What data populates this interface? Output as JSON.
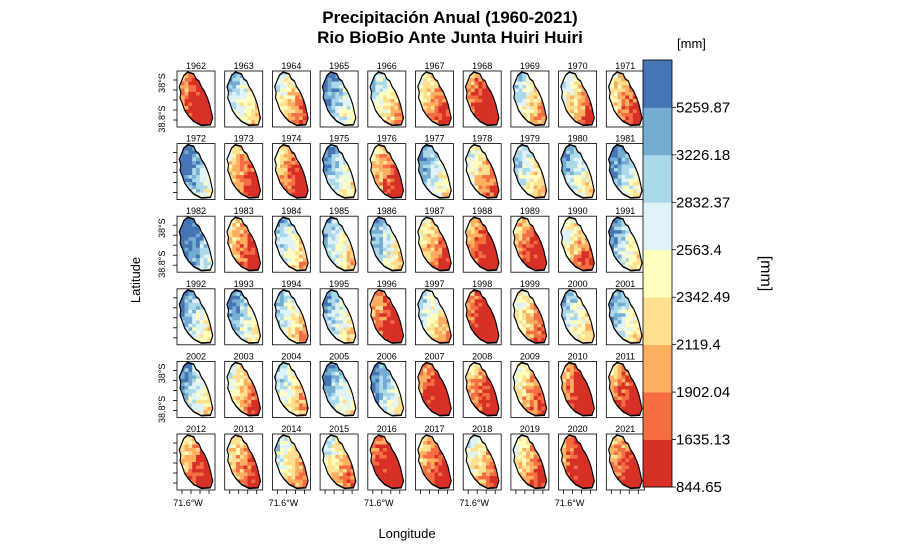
{
  "chart_data": {
    "type": "heatmap",
    "title": "Precipitación Anual (1960-2021)",
    "subtitle": "Rio BioBio Ante Junta Huiri Huiri",
    "xlabel": "Longitude",
    "ylabel": "Latitude",
    "x_tick_labels": [
      "71.6°W",
      "71.6°W",
      "71.6°W",
      "71.6°W",
      "71.6°W"
    ],
    "y_tick_labels": [
      "38°S",
      "38.8°S"
    ],
    "years": [
      [
        1962,
        1963,
        1964,
        1965,
        1966,
        1967,
        1968,
        1969,
        1970,
        1971
      ],
      [
        1972,
        1973,
        1974,
        1975,
        1976,
        1977,
        1978,
        1979,
        1980,
        1981
      ],
      [
        1982,
        1983,
        1984,
        1985,
        1986,
        1987,
        1988,
        1989,
        1990,
        1991
      ],
      [
        1992,
        1993,
        1994,
        1995,
        1996,
        1997,
        1998,
        1999,
        2000,
        2001
      ],
      [
        2002,
        2003,
        2004,
        2005,
        2006,
        2007,
        2008,
        2009,
        2010,
        2011
      ],
      [
        2012,
        2013,
        2014,
        2015,
        2016,
        2017,
        2018,
        2019,
        2020,
        2021
      ]
    ],
    "wetness_index": [
      [
        0.1,
        0.62,
        0.45,
        0.78,
        0.55,
        0.35,
        0.12,
        0.55,
        0.42,
        0.3
      ],
      [
        0.85,
        0.28,
        0.22,
        0.72,
        0.25,
        0.7,
        0.42,
        0.6,
        0.72,
        0.78
      ],
      [
        0.92,
        0.25,
        0.62,
        0.65,
        0.68,
        0.3,
        0.18,
        0.2,
        0.38,
        0.72
      ],
      [
        0.72,
        0.75,
        0.58,
        0.68,
        0.15,
        0.55,
        0.05,
        0.4,
        0.62,
        0.7
      ],
      [
        0.7,
        0.4,
        0.55,
        0.72,
        0.75,
        0.08,
        0.22,
        0.35,
        0.12,
        0.18
      ],
      [
        0.25,
        0.28,
        0.48,
        0.45,
        0.06,
        0.2,
        0.4,
        0.35,
        0.08,
        0.18
      ]
    ],
    "legend": {
      "unit_label": "[mm]",
      "axis_label": "[mm]",
      "breaks": [
        "844.65",
        "1635.13",
        "1902.04",
        "2119.4",
        "2342.49",
        "2563.4",
        "2832.37",
        "3226.18",
        "5259.87"
      ],
      "colors": [
        "#d73027",
        "#f46d43",
        "#fdae61",
        "#fee090",
        "#ffffbf",
        "#e0f3f8",
        "#abd9e9",
        "#74add1",
        "#4575b4"
      ]
    }
  }
}
